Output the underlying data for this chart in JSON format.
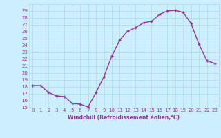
{
  "x": [
    0,
    1,
    2,
    3,
    4,
    5,
    6,
    7,
    8,
    9,
    10,
    11,
    12,
    13,
    14,
    15,
    16,
    17,
    18,
    19,
    20,
    21,
    22,
    23
  ],
  "y": [
    18.2,
    18.2,
    17.2,
    16.7,
    16.6,
    15.6,
    15.5,
    15.1,
    17.2,
    19.5,
    22.5,
    24.8,
    26.1,
    26.6,
    27.3,
    27.5,
    28.5,
    29.0,
    29.1,
    28.8,
    27.2,
    24.2,
    21.8,
    21.4
  ],
  "line_color": "#993399",
  "marker": "+",
  "background_color": "#cceeff",
  "grid_color": "#aadddd",
  "axis_label_color": "#993399",
  "tick_label_color": "#993399",
  "xlabel": "Windchill (Refroidissement éolien,°C)",
  "ylim": [
    15,
    30
  ],
  "xlim": [
    -0.5,
    23.5
  ],
  "yticks": [
    15,
    16,
    17,
    18,
    19,
    20,
    21,
    22,
    23,
    24,
    25,
    26,
    27,
    28,
    29
  ],
  "xticks": [
    0,
    1,
    2,
    3,
    4,
    5,
    6,
    7,
    8,
    9,
    10,
    11,
    12,
    13,
    14,
    15,
    16,
    17,
    18,
    19,
    20,
    21,
    22,
    23
  ],
  "line_width": 1.0,
  "marker_size": 3.5,
  "tick_fontsize": 5.0,
  "xlabel_fontsize": 5.5
}
